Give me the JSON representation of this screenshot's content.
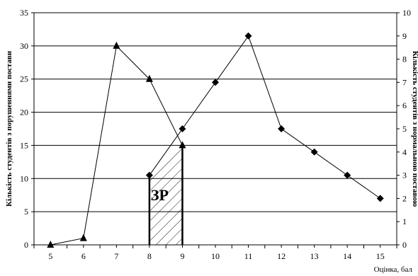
{
  "chart_data": {
    "type": "line",
    "x": [
      5,
      6,
      7,
      8,
      9,
      10,
      11,
      12,
      13,
      14,
      15
    ],
    "xlabel": "Оцінка, бал",
    "ylabel_left": "Кількість студентів з порушеннями постави",
    "ylabel_right": "Кількість студентів з нормальною поставою",
    "ylim_left": [
      0,
      35
    ],
    "ylim_right": [
      0,
      10
    ],
    "yticks_left": [
      0,
      5,
      10,
      15,
      20,
      25,
      30,
      35
    ],
    "yticks_right": [
      0,
      1,
      2,
      3,
      4,
      5,
      6,
      7,
      8,
      9,
      10
    ],
    "grid": true,
    "series": [
      {
        "axis": "left",
        "marker": "triangle",
        "x": [
          5,
          6,
          7,
          8,
          9
        ],
        "values": [
          0,
          1,
          30,
          25,
          15
        ]
      },
      {
        "axis": "right",
        "marker": "diamond",
        "x": [
          8,
          9,
          10,
          11,
          12,
          13,
          14,
          15
        ],
        "values": [
          3,
          5,
          7,
          9,
          5,
          4,
          3,
          2
        ]
      }
    ],
    "annotation": {
      "label": "ЗР",
      "x_from": 8,
      "x_to": 9,
      "style": "hatched"
    }
  }
}
